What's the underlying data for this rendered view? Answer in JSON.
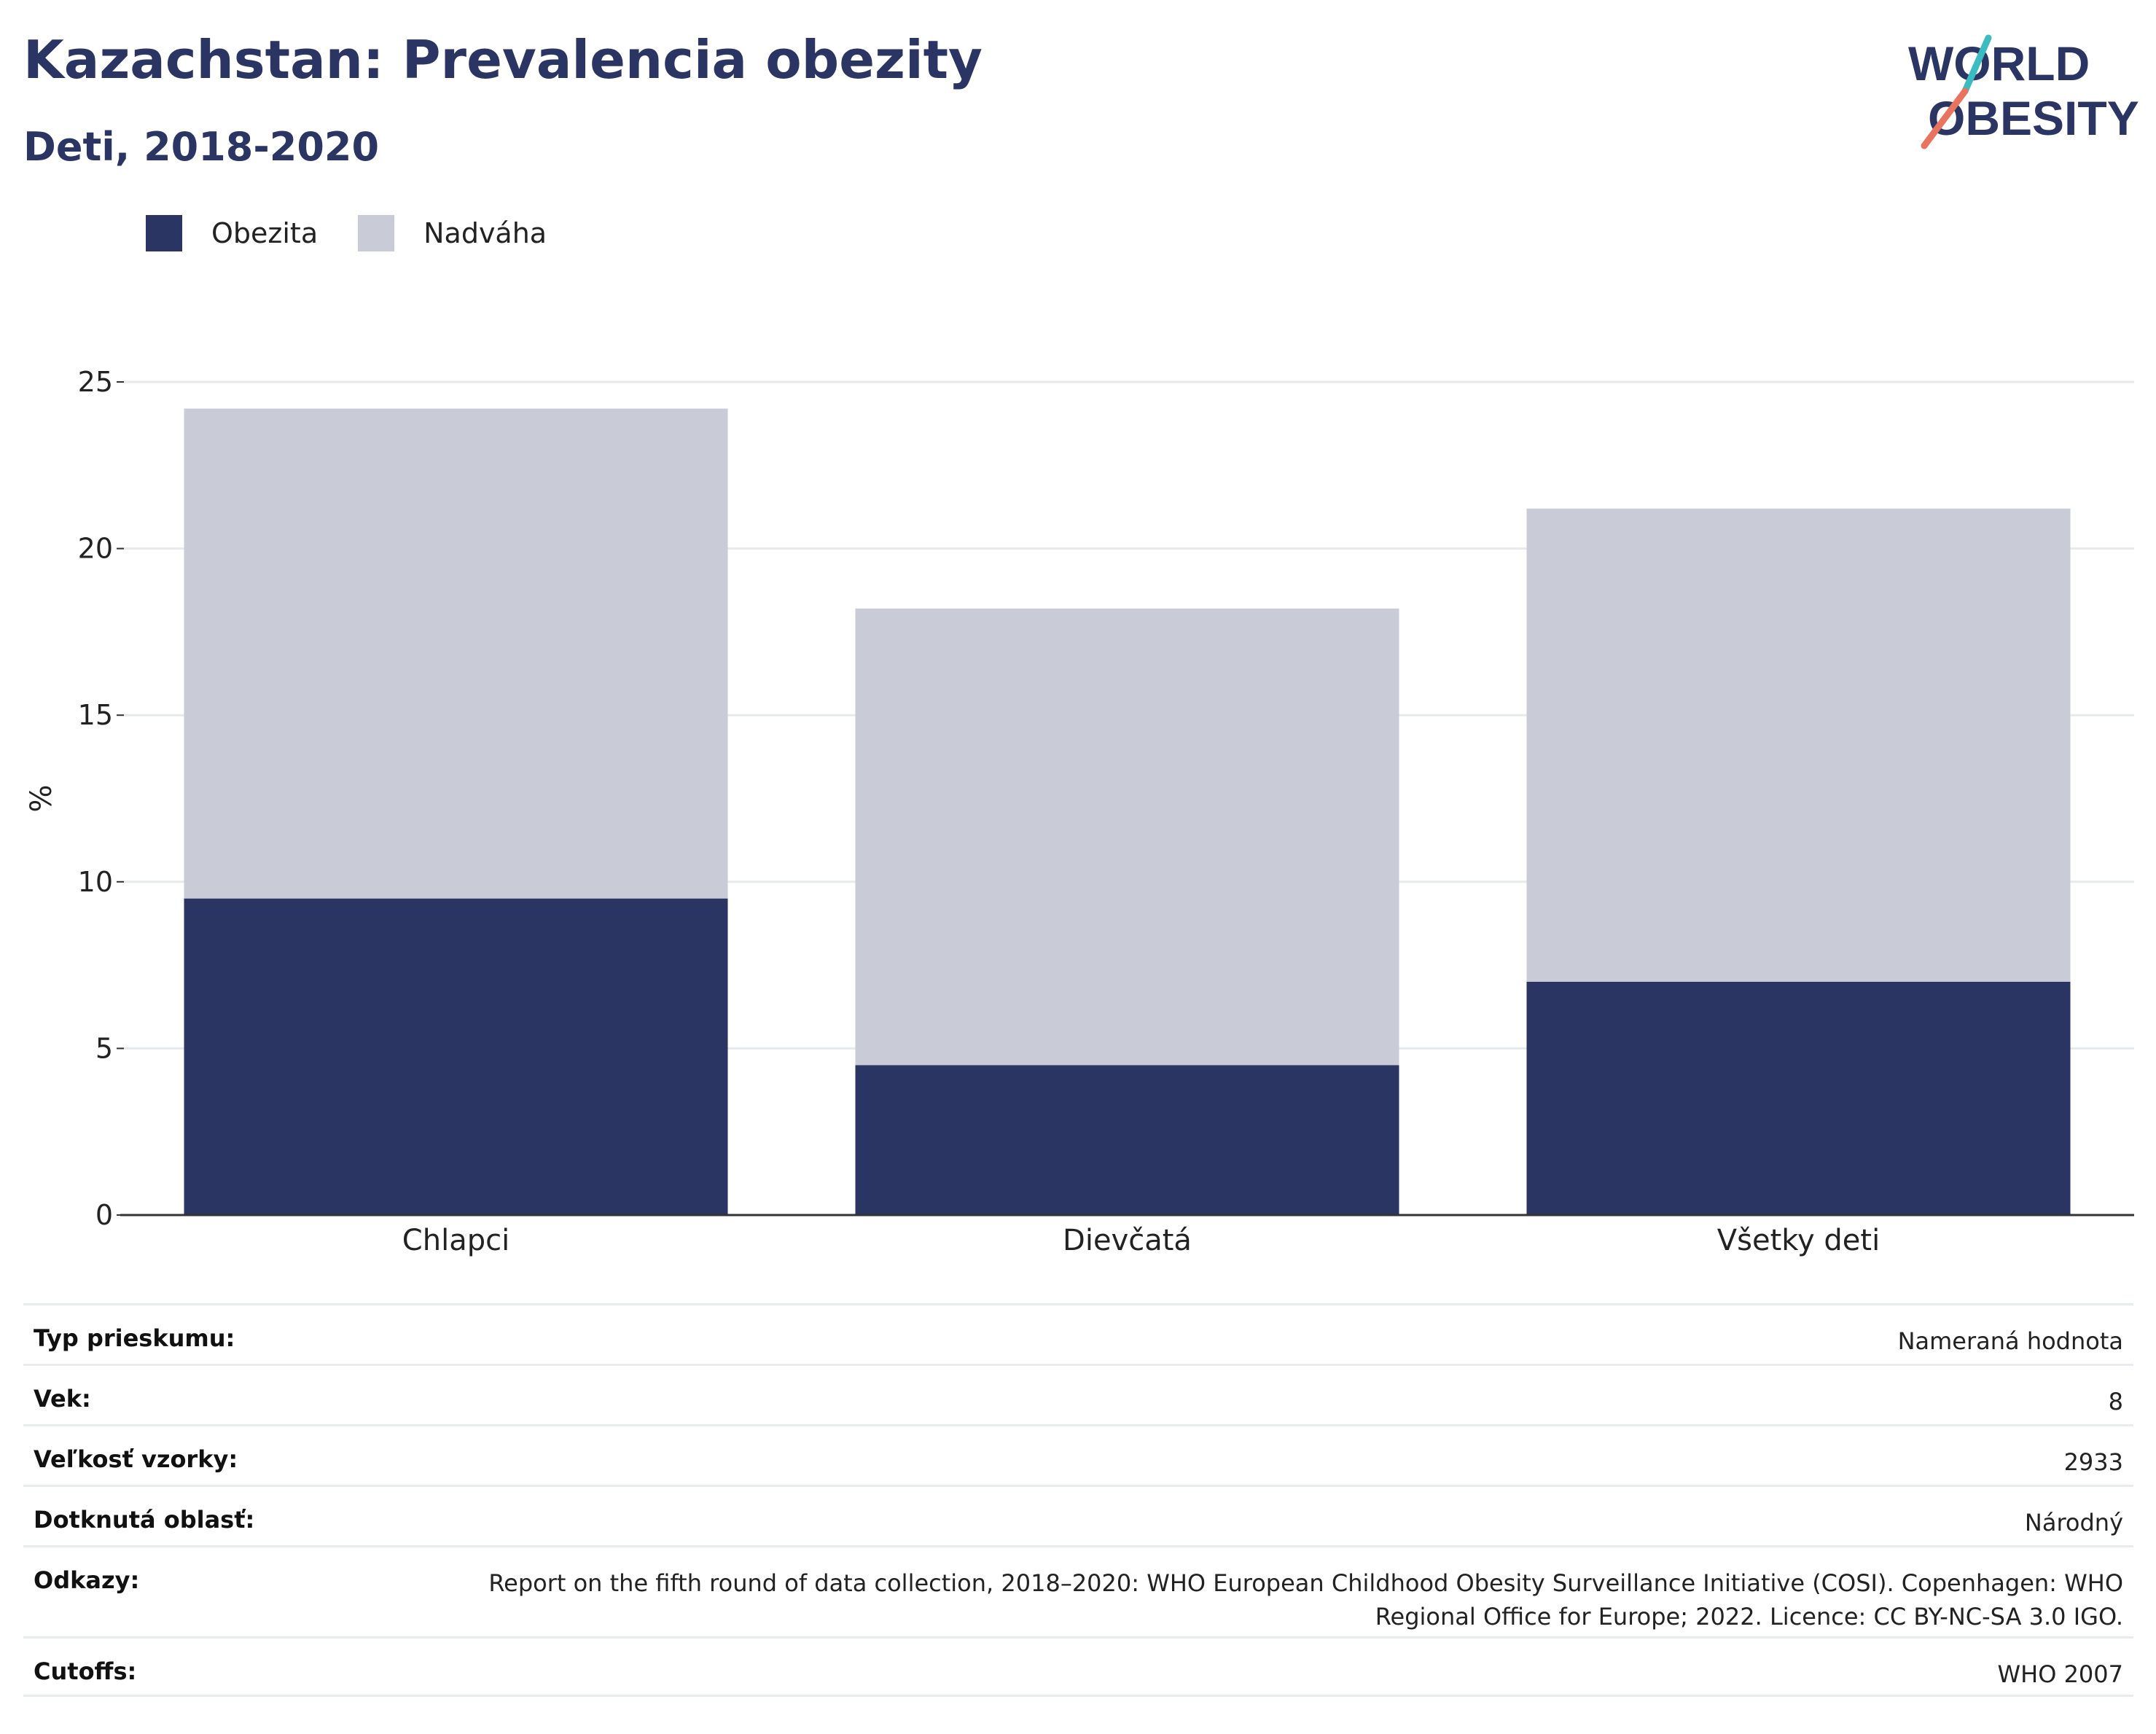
{
  "header": {
    "title": "Kazachstan: Prevalencia obezity",
    "subtitle": "Deti, 2018-2020",
    "logo_line1": "WORLD",
    "logo_line2": "OBESITY"
  },
  "colors": {
    "obesity": "#2b3563",
    "overweight": "#c9cbd6",
    "logo_teal": "#3bbcc0",
    "logo_coral": "#e8735f"
  },
  "chart_data": {
    "type": "bar",
    "stacked": true,
    "categories": [
      "Chlapci",
      "Dievčatá",
      "Všetky deti"
    ],
    "series": [
      {
        "name": "Obezita",
        "values": [
          9.5,
          4.5,
          7.0
        ]
      },
      {
        "name": "Nadváha",
        "values": [
          14.7,
          13.7,
          14.2
        ]
      }
    ],
    "ylabel": "%",
    "xlabel": "",
    "ylim": [
      0,
      25
    ],
    "yticks": [
      0,
      5,
      10,
      15,
      20,
      25
    ],
    "grid": true,
    "legend_position": "top-left"
  },
  "info": [
    {
      "label": "Typ prieskumu:",
      "value": "Nameraná hodnota"
    },
    {
      "label": "Vek:",
      "value": "8"
    },
    {
      "label": "Veľkosť vzorky:",
      "value": "2933"
    },
    {
      "label": "Dotknutá oblasť:",
      "value": "Národný"
    },
    {
      "label": "Odkazy:",
      "value": "Report on the fifth round of data collection, 2018–2020: WHO European Childhood Obesity Surveillance Initiative (COSI). Copenhagen: WHO Regional Office for Europe; 2022. Licence: CC BY-NC-SA 3.0 IGO."
    },
    {
      "label": "Cutoffs:",
      "value": "WHO 2007"
    }
  ]
}
